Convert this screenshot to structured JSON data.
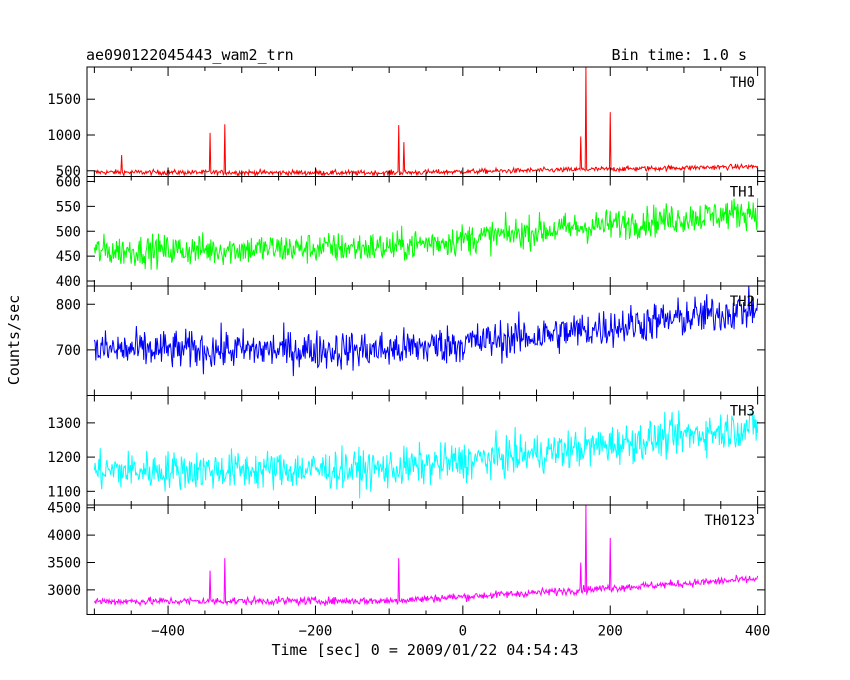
{
  "chart_data": {
    "type": "line",
    "title": "ae090122045443_wam2_trn",
    "subtitle": "Bin time: 1.0 s",
    "xlabel": "Time [sec] 0 = 2009/01/22 04:54:43",
    "ylabel": "Counts/sec",
    "xlim": [
      -510,
      410
    ],
    "x_ticks": [
      -400,
      -200,
      0,
      200,
      400
    ],
    "x_range": [
      -500,
      400
    ],
    "bin_time": 1.0,
    "grid": false,
    "panels": [
      {
        "name": "TH0",
        "color": "#ff0000",
        "ylim": [
          420,
          1950
        ],
        "y_ticks": [
          500,
          1000,
          1500
        ],
        "trend": [
          [
            -500,
            480
          ],
          [
            -100,
            470
          ],
          [
            400,
            560
          ]
        ],
        "noise": 25,
        "spikes": [
          {
            "x": -463,
            "y": 720
          },
          {
            "x": -343,
            "y": 1030
          },
          {
            "x": -323,
            "y": 1150
          },
          {
            "x": -87,
            "y": 1140
          },
          {
            "x": -80,
            "y": 900
          },
          {
            "x": 160,
            "y": 980
          },
          {
            "x": 167,
            "y": 1950
          },
          {
            "x": 200,
            "y": 1320
          }
        ]
      },
      {
        "name": "TH1",
        "color": "#00ff00",
        "ylim": [
          390,
          610
        ],
        "y_ticks": [
          400,
          450,
          500,
          550,
          600
        ],
        "trend": [
          [
            -500,
            460
          ],
          [
            -100,
            468
          ],
          [
            100,
            500
          ],
          [
            400,
            540
          ]
        ],
        "noise": 22,
        "spikes": []
      },
      {
        "name": "TH2",
        "color": "#0000ff",
        "ylim": [
          600,
          840
        ],
        "y_ticks": [
          700,
          800
        ],
        "trend": [
          [
            -500,
            700
          ],
          [
            -100,
            700
          ],
          [
            100,
            730
          ],
          [
            400,
            790
          ]
        ],
        "noise": 30,
        "spikes": []
      },
      {
        "name": "TH3",
        "color": "#00ffff",
        "ylim": [
          1060,
          1380
        ],
        "y_ticks": [
          1100,
          1200,
          1300
        ],
        "trend": [
          [
            -500,
            1160
          ],
          [
            -100,
            1165
          ],
          [
            100,
            1210
          ],
          [
            400,
            1290
          ]
        ],
        "noise": 40,
        "spikes": []
      },
      {
        "name": "TH0123",
        "color": "#ff00ff",
        "ylim": [
          2550,
          4550
        ],
        "y_ticks": [
          3000,
          3500,
          4000,
          4500
        ],
        "trend": [
          [
            -500,
            2790
          ],
          [
            -100,
            2800
          ],
          [
            100,
            2950
          ],
          [
            400,
            3200
          ]
        ],
        "noise": 50,
        "spikes": [
          {
            "x": -343,
            "y": 3350
          },
          {
            "x": -323,
            "y": 3580
          },
          {
            "x": -87,
            "y": 3580
          },
          {
            "x": 160,
            "y": 3500
          },
          {
            "x": 167,
            "y": 4550
          },
          {
            "x": 200,
            "y": 3950
          }
        ]
      }
    ]
  }
}
